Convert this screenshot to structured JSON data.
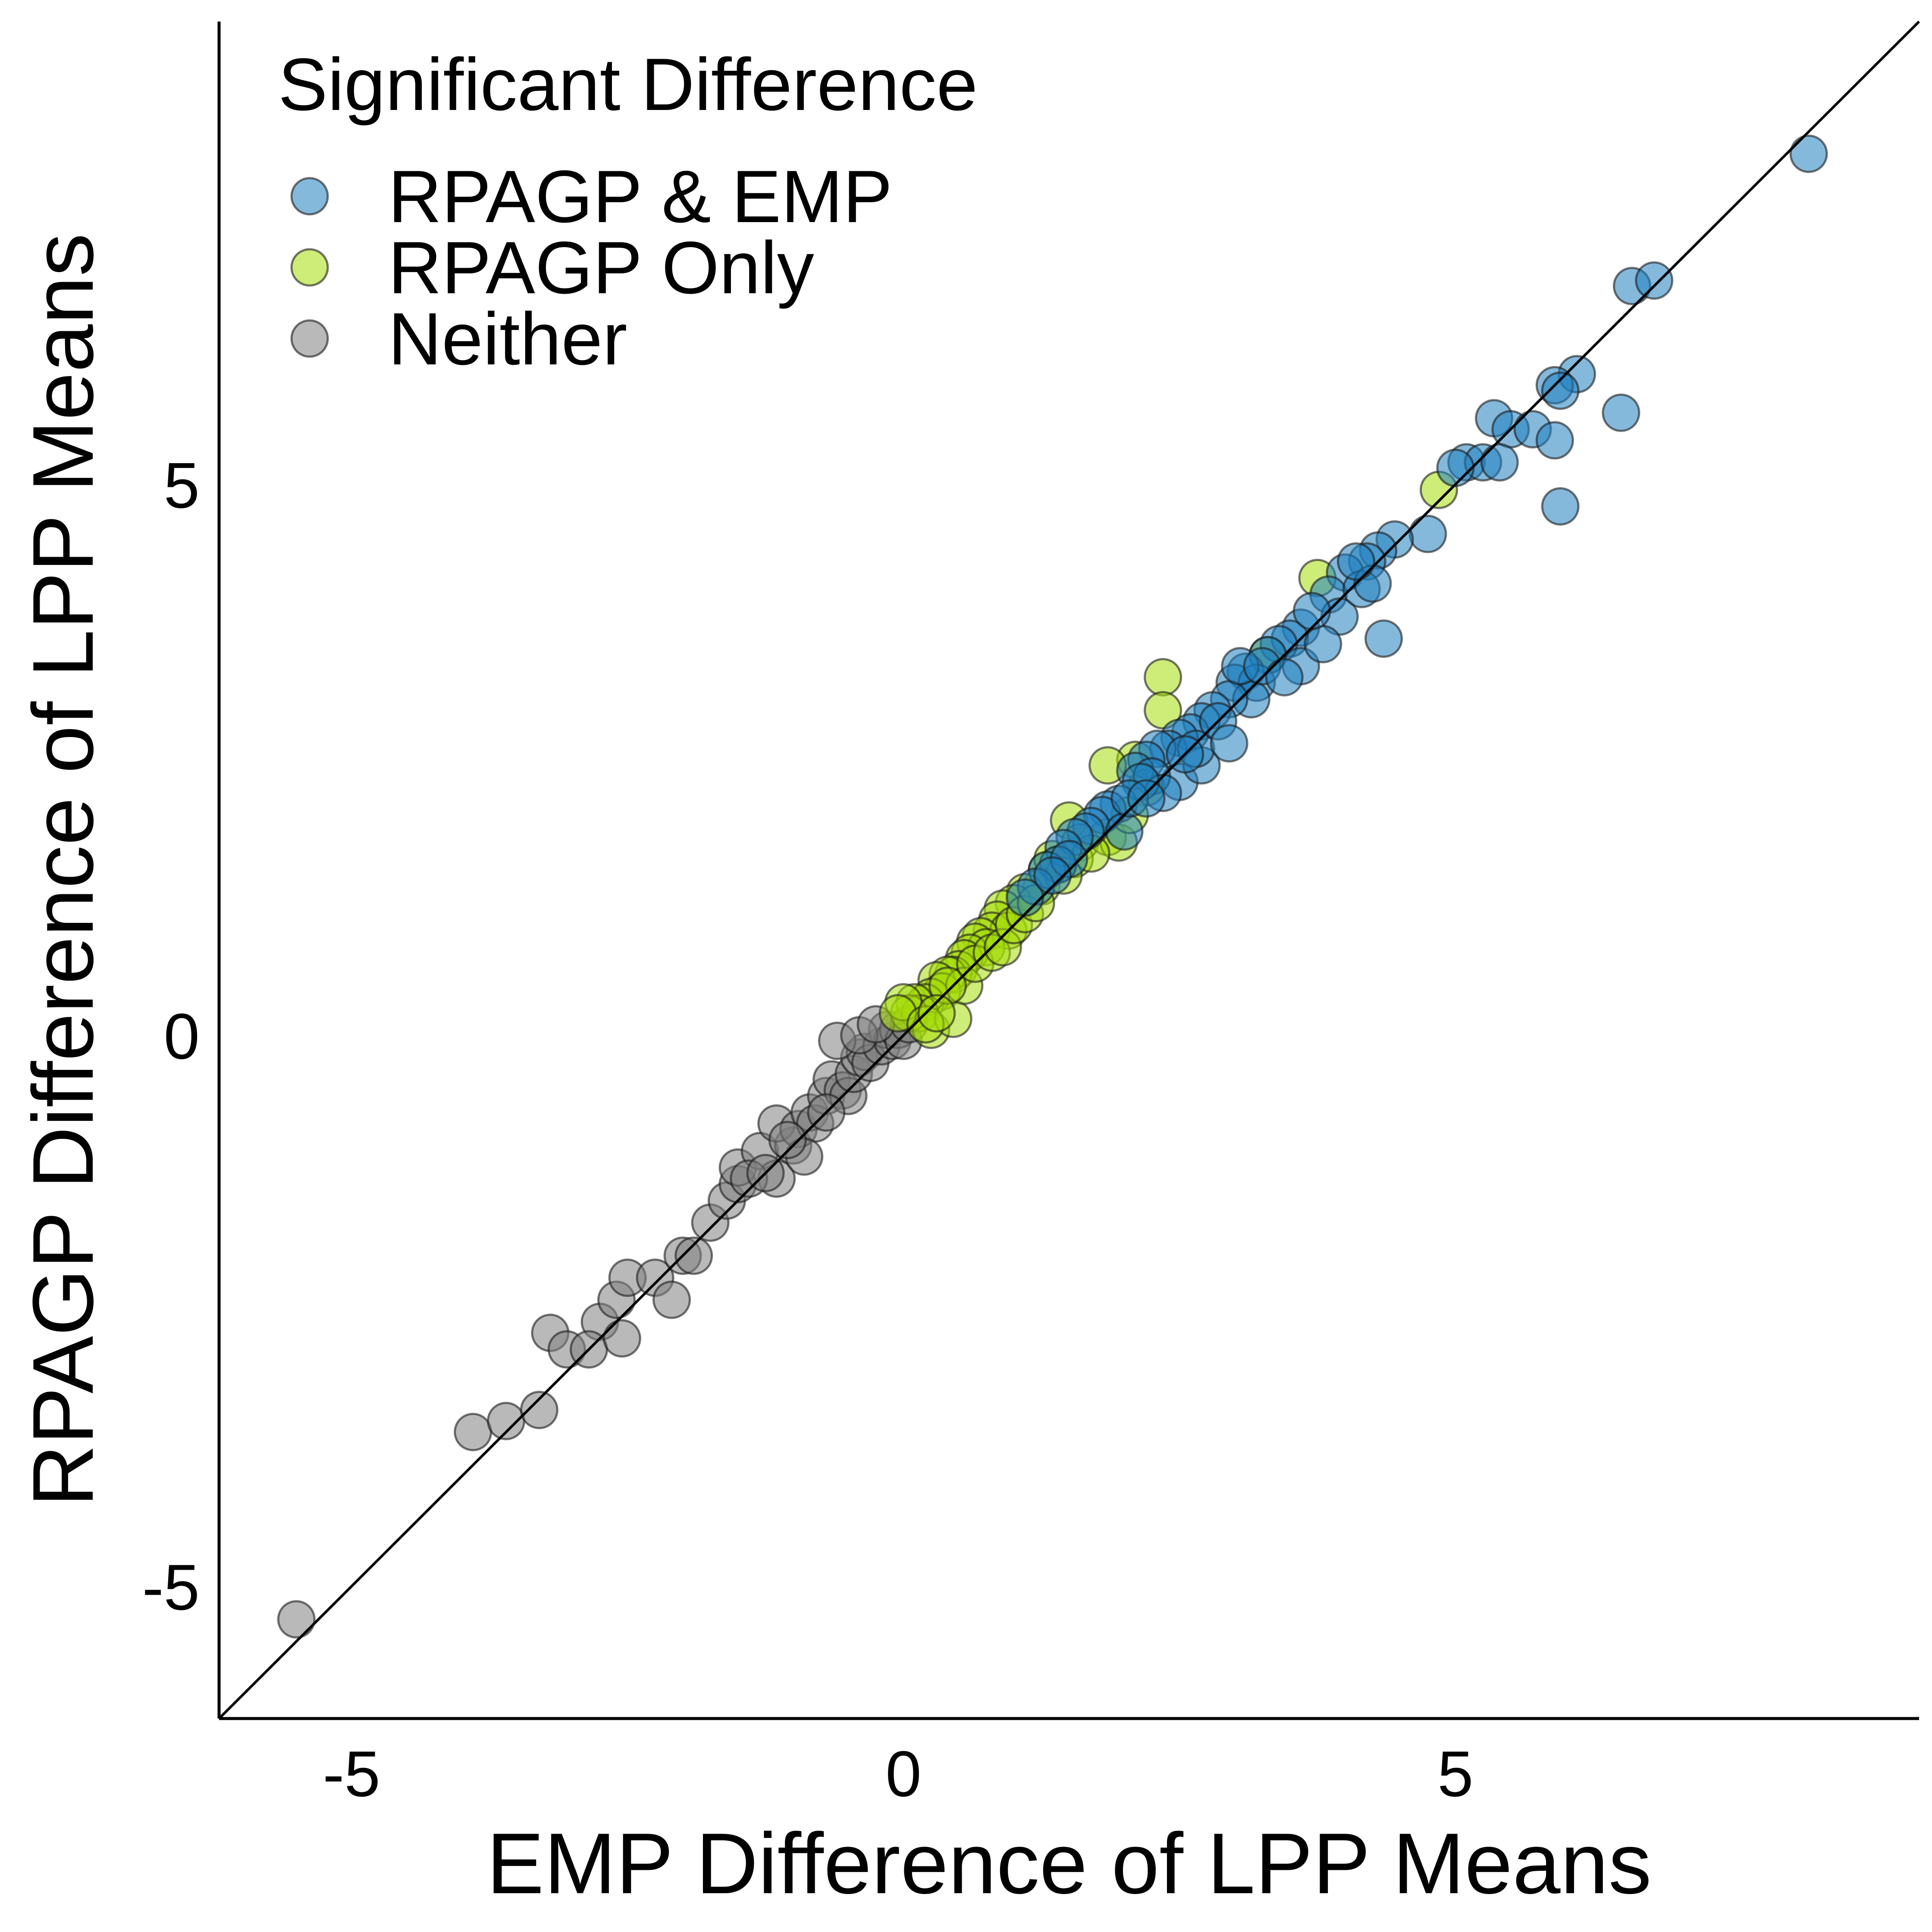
{
  "chart_data": {
    "type": "scatter",
    "title": "",
    "xlabel": "EMP Difference of LPP Means",
    "ylabel": "RPAGP Difference of LPP Means",
    "xlim": [
      -6.2,
      9.2
    ],
    "ylim": [
      -6.2,
      9.2
    ],
    "x_ticks": [
      -5,
      0,
      5
    ],
    "y_ticks": [
      -5,
      0,
      5
    ],
    "x_tick_labels": [
      "-5",
      "0",
      "5"
    ],
    "y_tick_labels": [
      "-5",
      "0",
      "5"
    ],
    "grid": false,
    "reference_line": "y = x",
    "legend": {
      "title": "Significant Difference",
      "position": "top-left",
      "entries": [
        "RPAGP & EMP",
        "RPAGP Only",
        "Neither"
      ]
    },
    "series": [
      {
        "name": "RPAGP & EMP",
        "color": "#1f7fbf",
        "points": [
          [
            8.2,
            8.0
          ],
          [
            6.6,
            6.8
          ],
          [
            6.8,
            6.85
          ],
          [
            6.1,
            6.0
          ],
          [
            5.9,
            5.9
          ],
          [
            5.95,
            5.85
          ],
          [
            5.35,
            5.6
          ],
          [
            5.5,
            5.5
          ],
          [
            5.7,
            5.5
          ],
          [
            5.9,
            5.4
          ],
          [
            6.5,
            5.65
          ],
          [
            5.1,
            5.2
          ],
          [
            5.25,
            5.2
          ],
          [
            5.0,
            5.15
          ],
          [
            5.4,
            5.2
          ],
          [
            5.95,
            4.8
          ],
          [
            4.75,
            4.55
          ],
          [
            4.45,
            4.5
          ],
          [
            4.3,
            4.4
          ],
          [
            4.2,
            4.3
          ],
          [
            4.0,
            4.2
          ],
          [
            3.85,
            4.0
          ],
          [
            3.95,
            3.8
          ],
          [
            4.35,
            3.6
          ],
          [
            3.6,
            3.7
          ],
          [
            3.5,
            3.6
          ],
          [
            3.4,
            3.55
          ],
          [
            3.3,
            3.45
          ],
          [
            3.1,
            3.3
          ],
          [
            3.0,
            3.2
          ],
          [
            3.2,
            3.2
          ],
          [
            3.15,
            3.05
          ],
          [
            2.95,
            3.05
          ],
          [
            2.8,
            2.95
          ],
          [
            2.7,
            2.85
          ],
          [
            2.6,
            2.75
          ],
          [
            2.5,
            2.7
          ],
          [
            2.4,
            2.6
          ],
          [
            2.3,
            2.6
          ],
          [
            2.2,
            2.5
          ],
          [
            2.1,
            2.4
          ],
          [
            2.5,
            2.3
          ],
          [
            2.25,
            2.35
          ],
          [
            2.35,
            2.2
          ],
          [
            2.15,
            2.3
          ],
          [
            1.95,
            2.1
          ],
          [
            1.85,
            2.05
          ],
          [
            1.8,
            2.0
          ],
          [
            1.7,
            1.9
          ],
          [
            1.65,
            1.85
          ],
          [
            1.55,
            1.8
          ],
          [
            1.45,
            1.7
          ],
          [
            1.4,
            1.55
          ],
          [
            1.3,
            1.5
          ],
          [
            1.2,
            1.35
          ],
          [
            1.1,
            1.25
          ],
          [
            2.7,
            2.45
          ],
          [
            2.65,
            2.6
          ],
          [
            2.85,
            2.85
          ],
          [
            3.05,
            3.35
          ],
          [
            3.25,
            3.35
          ],
          [
            2.95,
            2.65
          ],
          [
            3.6,
            3.35
          ],
          [
            3.8,
            3.55
          ],
          [
            4.15,
            4.05
          ],
          [
            4.25,
            4.1
          ],
          [
            2.0,
            1.85
          ],
          [
            2.05,
            2.15
          ],
          [
            3.45,
            3.25
          ],
          [
            2.2,
            2.15
          ],
          [
            1.5,
            1.6
          ],
          [
            1.35,
            1.45
          ],
          [
            2.55,
            2.55
          ],
          [
            3.7,
            3.85
          ],
          [
            4.1,
            4.3
          ]
        ]
      },
      {
        "name": "RPAGP Only",
        "color": "#a6dc0a",
        "points": [
          [
            4.85,
            4.95
          ],
          [
            3.75,
            4.15
          ],
          [
            3.3,
            3.45
          ],
          [
            2.35,
            3.25
          ],
          [
            2.35,
            2.95
          ],
          [
            2.1,
            2.5
          ],
          [
            1.85,
            2.45
          ],
          [
            2.2,
            2.25
          ],
          [
            1.5,
            1.95
          ],
          [
            1.6,
            1.75
          ],
          [
            1.85,
            1.8
          ],
          [
            1.95,
            1.75
          ],
          [
            1.55,
            1.6
          ],
          [
            1.4,
            1.55
          ],
          [
            1.3,
            1.5
          ],
          [
            1.25,
            1.35
          ],
          [
            1.1,
            1.3
          ],
          [
            1.0,
            1.2
          ],
          [
            0.9,
            1.15
          ],
          [
            0.85,
            1.05
          ],
          [
            0.8,
            0.95
          ],
          [
            0.95,
            0.95
          ],
          [
            0.7,
            0.9
          ],
          [
            0.65,
            0.85
          ],
          [
            0.75,
            0.8
          ],
          [
            0.6,
            0.75
          ],
          [
            0.55,
            0.7
          ],
          [
            0.5,
            0.6
          ],
          [
            0.45,
            0.55
          ],
          [
            0.4,
            0.55
          ],
          [
            0.3,
            0.5
          ],
          [
            0.35,
            0.4
          ],
          [
            0.25,
            0.35
          ],
          [
            0.2,
            0.3
          ],
          [
            0.1,
            0.3
          ],
          [
            0.15,
            0.2
          ],
          [
            0.05,
            0.2
          ],
          [
            0.0,
            0.3
          ],
          [
            -0.05,
            0.2
          ],
          [
            0.25,
            0.05
          ],
          [
            0.45,
            0.15
          ],
          [
            0.55,
            0.45
          ],
          [
            0.4,
            0.45
          ],
          [
            0.65,
            0.65
          ],
          [
            0.8,
            0.75
          ],
          [
            0.9,
            0.8
          ],
          [
            1.0,
            1.0
          ],
          [
            1.1,
            1.1
          ],
          [
            1.2,
            1.2
          ],
          [
            1.7,
            1.65
          ],
          [
            1.35,
            1.6
          ],
          [
            1.45,
            1.45
          ],
          [
            2.05,
            2.0
          ],
          [
            0.2,
            0.1
          ],
          [
            0.3,
            0.2
          ]
        ]
      },
      {
        "name": "Neither",
        "color": "#808080",
        "points": [
          [
            -5.5,
            -5.3
          ],
          [
            -3.9,
            -3.6
          ],
          [
            -3.6,
            -3.5
          ],
          [
            -3.3,
            -3.4
          ],
          [
            -3.2,
            -2.7
          ],
          [
            -3.05,
            -2.85
          ],
          [
            -2.75,
            -2.6
          ],
          [
            -2.85,
            -2.85
          ],
          [
            -2.6,
            -2.4
          ],
          [
            -2.55,
            -2.75
          ],
          [
            -2.5,
            -2.2
          ],
          [
            -2.25,
            -2.2
          ],
          [
            -2.0,
            -2.0
          ],
          [
            -1.9,
            -2.0
          ],
          [
            -2.1,
            -2.4
          ],
          [
            -1.75,
            -1.7
          ],
          [
            -1.6,
            -1.5
          ],
          [
            -1.5,
            -1.35
          ],
          [
            -1.5,
            -1.2
          ],
          [
            -1.3,
            -1.05
          ],
          [
            -1.15,
            -1.3
          ],
          [
            -1.0,
            -1.0
          ],
          [
            -1.15,
            -0.8
          ],
          [
            -0.95,
            -0.85
          ],
          [
            -0.85,
            -0.7
          ],
          [
            -0.8,
            -0.8
          ],
          [
            -0.7,
            -0.55
          ],
          [
            -0.65,
            -0.4
          ],
          [
            -0.55,
            -0.5
          ],
          [
            -0.5,
            -0.55
          ],
          [
            -0.45,
            -0.35
          ],
          [
            -0.4,
            -0.2
          ],
          [
            -0.35,
            -0.15
          ],
          [
            -0.3,
            -0.25
          ],
          [
            -0.2,
            -0.1
          ],
          [
            -0.15,
            0.05
          ],
          [
            -0.1,
            -0.05
          ],
          [
            -0.05,
            0.05
          ],
          [
            0.0,
            -0.05
          ],
          [
            0.05,
            0.1
          ],
          [
            -0.6,
            -0.05
          ],
          [
            -0.4,
            0.0
          ],
          [
            -0.25,
            0.1
          ],
          [
            -0.7,
            -0.7
          ],
          [
            -0.9,
            -1.1
          ],
          [
            -1.05,
            -0.95
          ],
          [
            -1.4,
            -1.3
          ],
          [
            -1.25,
            -1.25
          ]
        ]
      }
    ]
  }
}
